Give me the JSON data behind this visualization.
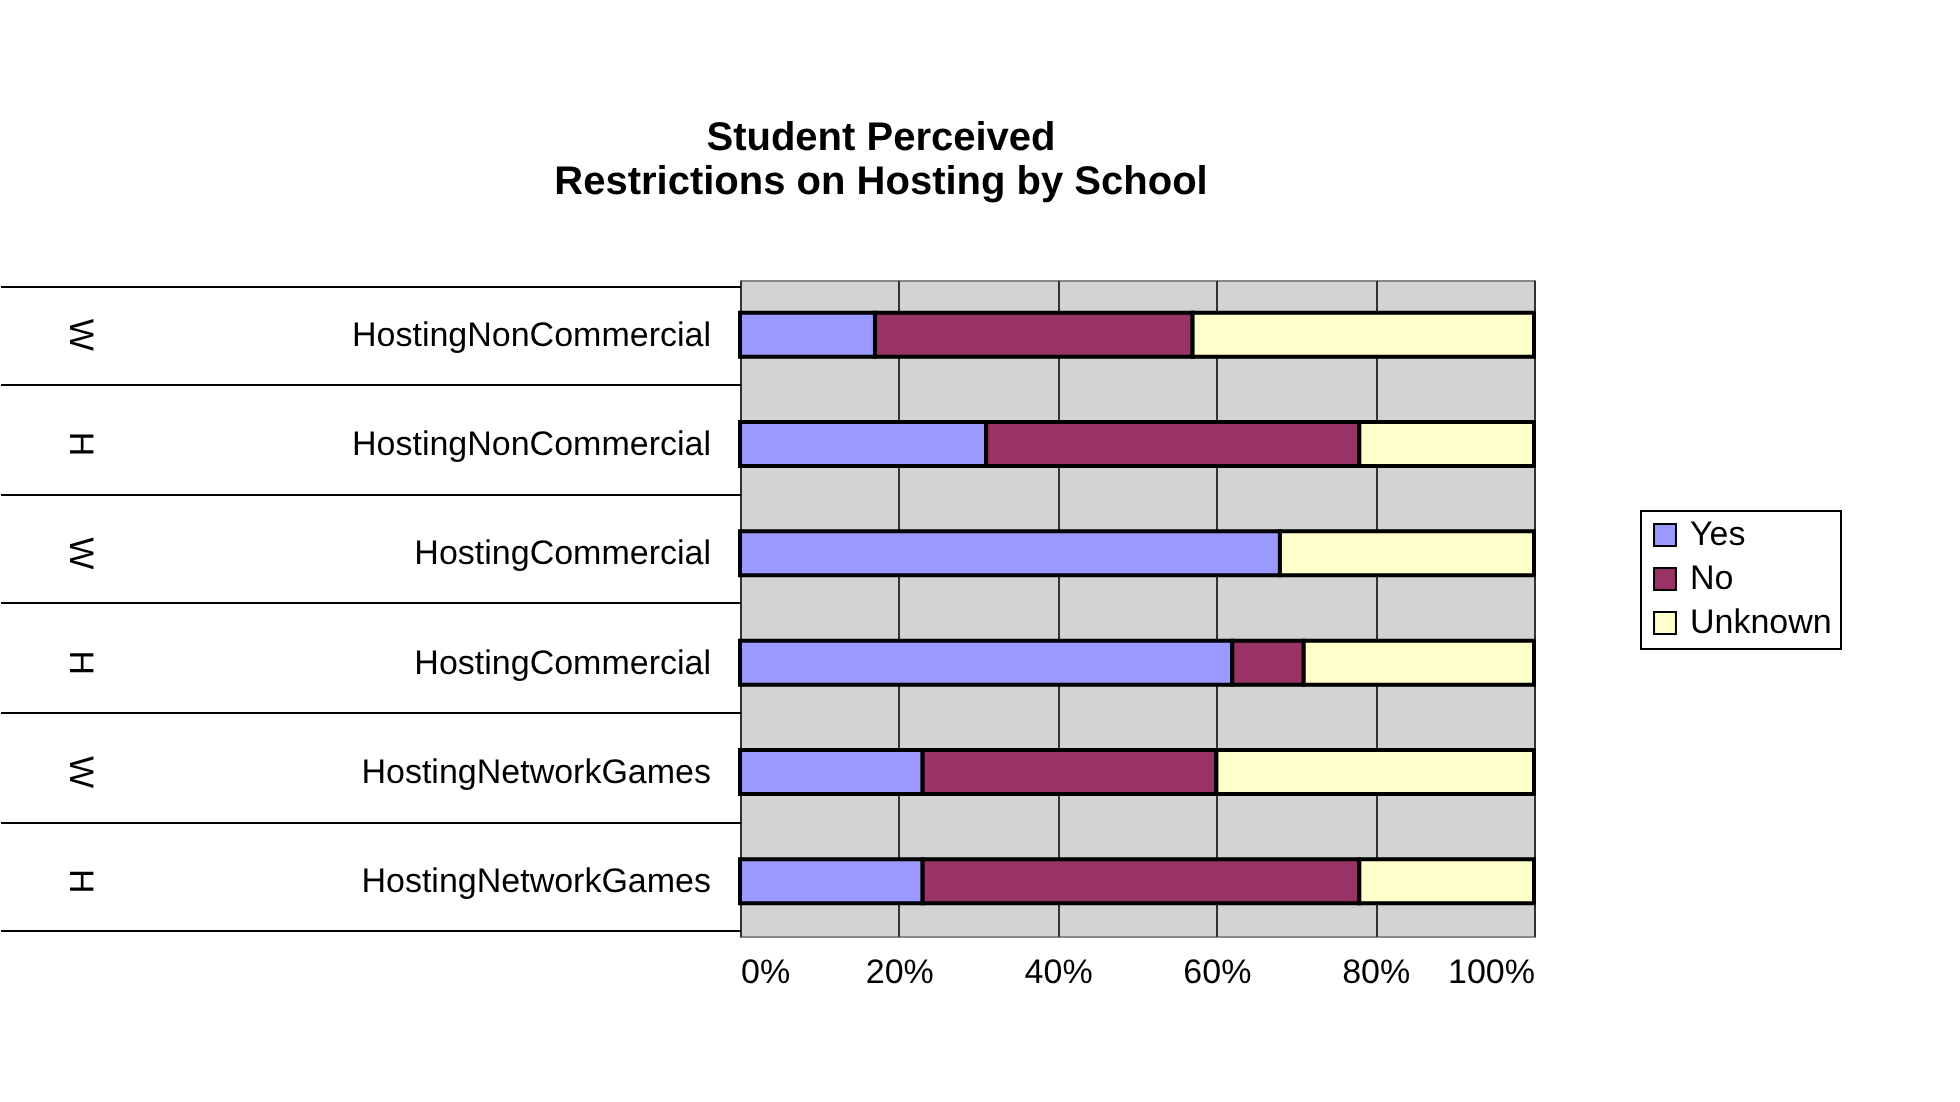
{
  "chart_data": {
    "type": "bar",
    "orientation": "horizontal",
    "stacked": true,
    "title": "Student Perceived\nRestrictions on Hosting by School",
    "categories": [
      "HostingNonCommercial",
      "HostingNonCommercial",
      "HostingCommercial",
      "HostingCommercial",
      "HostingNetworkGames",
      "HostingNetworkGames"
    ],
    "annotations": [
      "W",
      "H",
      "W",
      "H",
      "W",
      "H"
    ],
    "series": [
      {
        "name": "Yes",
        "color": "#9999ff",
        "values": [
          17,
          31,
          68,
          62,
          23,
          23
        ]
      },
      {
        "name": "No",
        "color": "#993366",
        "values": [
          40,
          47,
          0,
          9,
          37,
          55
        ]
      },
      {
        "name": "Unknown",
        "color": "#ffffcc",
        "values": [
          43,
          22,
          32,
          29,
          40,
          22
        ]
      }
    ],
    "xlim": [
      0,
      100
    ],
    "xticks": [
      {
        "value": 0,
        "label": "0%"
      },
      {
        "value": 20,
        "label": "20%"
      },
      {
        "value": 40,
        "label": "40%"
      },
      {
        "value": 60,
        "label": "60%"
      },
      {
        "value": 80,
        "label": "80%"
      },
      {
        "value": 100,
        "label": "100%"
      }
    ],
    "grid": "x",
    "legend": "right"
  }
}
